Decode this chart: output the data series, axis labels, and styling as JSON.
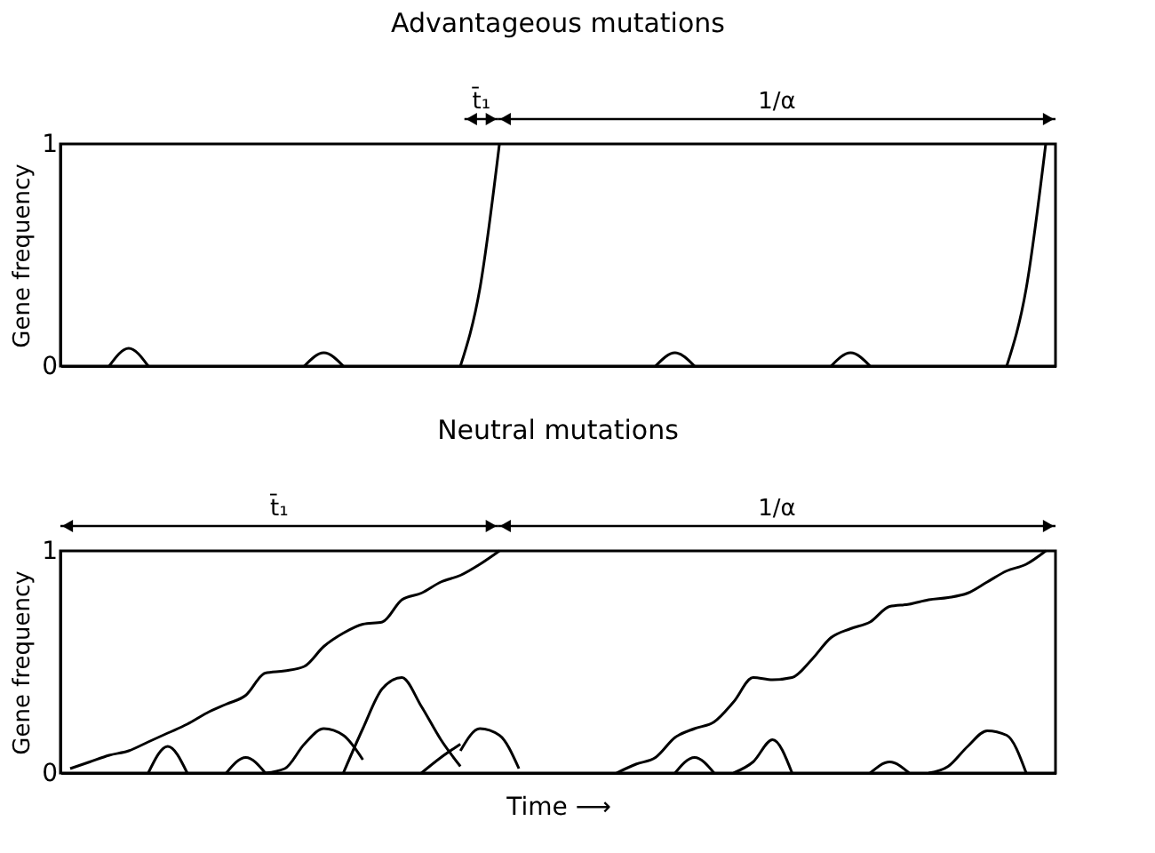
{
  "chart_data": [
    {
      "type": "line",
      "title": "Advantageous mutations",
      "ylabel": "Gene frequency",
      "ylim": [
        0,
        1
      ],
      "yticks": [
        0,
        1
      ],
      "grid": false,
      "legend": false,
      "tick_labels": "y",
      "annotations": [
        "t̄₁",
        "1/α"
      ],
      "categories": [
        null,
        null,
        null,
        null,
        null,
        null,
        null,
        null,
        null,
        null,
        null,
        null,
        null,
        null,
        null,
        null,
        null,
        null,
        null,
        null,
        null,
        null,
        null,
        null,
        null,
        null,
        null,
        null,
        null,
        null,
        null,
        null,
        null,
        null,
        null,
        null,
        null,
        null,
        null,
        null,
        null,
        null,
        null,
        null,
        null,
        null,
        null,
        null,
        null,
        null,
        null
      ],
      "series": [
        {
          "color": "#000000",
          "values": [
            null,
            null,
            0,
            0.08,
            0,
            null,
            null,
            null,
            null,
            null,
            null,
            null,
            null,
            null,
            null,
            null,
            null,
            null,
            null,
            null,
            null,
            null,
            null,
            null,
            null,
            null,
            null,
            null,
            null,
            null,
            null,
            null,
            null,
            null,
            null,
            null,
            null,
            null,
            null,
            null,
            null,
            null,
            null,
            null,
            null,
            null,
            null,
            null,
            null,
            null,
            null
          ]
        },
        {
          "color": "#000000",
          "values": [
            null,
            null,
            null,
            null,
            null,
            null,
            null,
            null,
            null,
            null,
            null,
            null,
            0,
            0.06,
            0,
            null,
            null,
            null,
            null,
            null,
            null,
            null,
            null,
            null,
            null,
            null,
            null,
            null,
            null,
            null,
            null,
            null,
            null,
            null,
            null,
            null,
            null,
            null,
            null,
            null,
            null,
            null,
            null,
            null,
            null,
            null,
            null,
            null,
            null,
            null,
            null
          ]
        },
        {
          "color": "#000000",
          "values": [
            null,
            null,
            null,
            null,
            null,
            null,
            null,
            null,
            null,
            null,
            null,
            null,
            null,
            null,
            null,
            null,
            null,
            null,
            null,
            null,
            0,
            0.35,
            1,
            null,
            null,
            null,
            null,
            null,
            null,
            null,
            null,
            null,
            null,
            null,
            null,
            null,
            null,
            null,
            null,
            null,
            null,
            null,
            null,
            null,
            null,
            null,
            null,
            null,
            null,
            null,
            null
          ]
        },
        {
          "color": "#000000",
          "values": [
            null,
            null,
            null,
            null,
            null,
            null,
            null,
            null,
            null,
            null,
            null,
            null,
            null,
            null,
            null,
            null,
            null,
            null,
            null,
            null,
            null,
            null,
            null,
            null,
            null,
            null,
            null,
            null,
            null,
            null,
            0,
            0.06,
            0,
            null,
            null,
            null,
            null,
            null,
            null,
            null,
            null,
            null,
            null,
            null,
            null,
            null,
            null,
            null,
            null,
            null,
            null
          ]
        },
        {
          "color": "#000000",
          "values": [
            null,
            null,
            null,
            null,
            null,
            null,
            null,
            null,
            null,
            null,
            null,
            null,
            null,
            null,
            null,
            null,
            null,
            null,
            null,
            null,
            null,
            null,
            null,
            null,
            null,
            null,
            null,
            null,
            null,
            null,
            null,
            null,
            null,
            null,
            null,
            null,
            null,
            null,
            null,
            0,
            0.06,
            0,
            null,
            null,
            null,
            null,
            null,
            null,
            null,
            null,
            null
          ]
        },
        {
          "color": "#000000",
          "values": [
            null,
            null,
            null,
            null,
            null,
            null,
            null,
            null,
            null,
            null,
            null,
            null,
            null,
            null,
            null,
            null,
            null,
            null,
            null,
            null,
            null,
            null,
            null,
            null,
            null,
            null,
            null,
            null,
            null,
            null,
            null,
            null,
            null,
            null,
            null,
            null,
            null,
            null,
            null,
            null,
            null,
            null,
            null,
            null,
            null,
            null,
            null,
            null,
            0,
            0.35,
            1
          ]
        }
      ]
    },
    {
      "type": "line",
      "title": "Neutral mutations",
      "ylabel": "Gene frequency",
      "xlabel": "Time ⟶",
      "ylim": [
        0,
        1
      ],
      "yticks": [
        0,
        1
      ],
      "grid": false,
      "legend": false,
      "tick_labels": "y",
      "annotations": [
        "t̄₁",
        "1/α"
      ],
      "categories": [
        null,
        null,
        null,
        null,
        null,
        null,
        null,
        null,
        null,
        null,
        null,
        null,
        null,
        null,
        null,
        null,
        null,
        null,
        null,
        null,
        null,
        null,
        null,
        null,
        null,
        null,
        null,
        null,
        null,
        null,
        null,
        null,
        null,
        null,
        null,
        null,
        null,
        null,
        null,
        null,
        null,
        null,
        null,
        null,
        null,
        null,
        null,
        null,
        null,
        null,
        null
      ],
      "series": [
        {
          "color": "#000000",
          "values": [
            0.02,
            0.05,
            0.08,
            0.1,
            0.14,
            0.18,
            0.22,
            0.27,
            0.31,
            0.35,
            0.45,
            0.46,
            0.48,
            0.57,
            0.63,
            0.67,
            0.68,
            0.78,
            0.81,
            0.86,
            0.89,
            0.94,
            1,
            null,
            null,
            null,
            null,
            null,
            null,
            null,
            null,
            null,
            null,
            null,
            null,
            null,
            null,
            null,
            null,
            null,
            null,
            null,
            null,
            null,
            null,
            null,
            null,
            null,
            null,
            null,
            null
          ]
        },
        {
          "color": "#000000",
          "values": [
            null,
            null,
            null,
            null,
            0,
            0.12,
            0,
            null,
            null,
            null,
            null,
            null,
            null,
            null,
            null,
            null,
            null,
            null,
            null,
            null,
            null,
            null,
            null,
            null,
            null,
            null,
            null,
            null,
            null,
            null,
            null,
            null,
            null,
            null,
            null,
            null,
            null,
            null,
            null,
            null,
            null,
            null,
            null,
            null,
            null,
            null,
            null,
            null,
            null,
            null,
            null
          ]
        },
        {
          "color": "#000000",
          "values": [
            null,
            null,
            null,
            null,
            null,
            null,
            null,
            null,
            0,
            0.07,
            0,
            null,
            null,
            null,
            null,
            null,
            null,
            null,
            null,
            null,
            null,
            null,
            null,
            null,
            null,
            null,
            null,
            null,
            null,
            null,
            null,
            null,
            null,
            null,
            null,
            null,
            null,
            null,
            null,
            null,
            null,
            null,
            null,
            null,
            null,
            null,
            null,
            null,
            null,
            null,
            null
          ]
        },
        {
          "color": "#000000",
          "values": [
            null,
            null,
            null,
            null,
            null,
            null,
            null,
            null,
            null,
            null,
            0,
            0.02,
            0.13,
            0.2,
            0.17,
            0.06,
            null,
            null,
            null,
            null,
            null,
            null,
            null,
            null,
            null,
            null,
            null,
            null,
            null,
            null,
            null,
            null,
            null,
            null,
            null,
            null,
            null,
            null,
            null,
            null,
            null,
            null,
            null,
            null,
            null,
            null,
            null,
            null,
            null,
            null,
            null
          ]
        },
        {
          "color": "#000000",
          "values": [
            null,
            null,
            null,
            null,
            null,
            null,
            null,
            null,
            null,
            null,
            null,
            null,
            null,
            null,
            0,
            0.2,
            0.38,
            0.43,
            0.3,
            0.15,
            0.03,
            null,
            null,
            null,
            null,
            null,
            null,
            null,
            null,
            null,
            null,
            null,
            null,
            null,
            null,
            null,
            null,
            null,
            null,
            null,
            null,
            null,
            null,
            null,
            null,
            null,
            null,
            null,
            null,
            null,
            null
          ]
        },
        {
          "color": "#000000",
          "values": [
            null,
            null,
            null,
            null,
            null,
            null,
            null,
            null,
            null,
            null,
            null,
            null,
            null,
            null,
            null,
            null,
            null,
            null,
            0,
            0.07,
            0.13,
            null,
            null,
            null,
            null,
            null,
            null,
            null,
            null,
            null,
            null,
            null,
            null,
            null,
            null,
            null,
            null,
            null,
            null,
            null,
            null,
            null,
            null,
            null,
            null,
            null,
            null,
            null,
            null,
            null,
            null
          ]
        },
        {
          "color": "#000000",
          "values": [
            null,
            null,
            null,
            null,
            null,
            null,
            null,
            null,
            null,
            null,
            null,
            null,
            null,
            null,
            null,
            null,
            null,
            null,
            null,
            null,
            0.1,
            0.2,
            0.17,
            0.02,
            null,
            null,
            null,
            null,
            null,
            null,
            null,
            null,
            null,
            null,
            null,
            null,
            null,
            null,
            null,
            null,
            null,
            null,
            null,
            null,
            null,
            null,
            null,
            null,
            null,
            null,
            null
          ]
        },
        {
          "color": "#000000",
          "values": [
            null,
            null,
            null,
            null,
            null,
            null,
            null,
            null,
            null,
            null,
            null,
            null,
            null,
            null,
            null,
            null,
            null,
            null,
            null,
            null,
            null,
            null,
            null,
            null,
            null,
            null,
            null,
            null,
            0,
            0.04,
            0.07,
            0.16,
            0.2,
            0.23,
            0.32,
            0.43,
            0.42,
            0.43,
            0.51,
            0.61,
            0.65,
            0.68,
            0.75,
            0.76,
            0.78,
            0.79,
            0.81,
            0.86,
            0.91,
            0.94,
            1
          ]
        },
        {
          "color": "#000000",
          "values": [
            null,
            null,
            null,
            null,
            null,
            null,
            null,
            null,
            null,
            null,
            null,
            null,
            null,
            null,
            null,
            null,
            null,
            null,
            null,
            null,
            null,
            null,
            null,
            null,
            null,
            null,
            null,
            null,
            null,
            null,
            null,
            0,
            0.07,
            0,
            null,
            null,
            null,
            null,
            null,
            null,
            null,
            null,
            null,
            null,
            null,
            null,
            null,
            null,
            null,
            null,
            null
          ]
        },
        {
          "color": "#000000",
          "values": [
            null,
            null,
            null,
            null,
            null,
            null,
            null,
            null,
            null,
            null,
            null,
            null,
            null,
            null,
            null,
            null,
            null,
            null,
            null,
            null,
            null,
            null,
            null,
            null,
            null,
            null,
            null,
            null,
            null,
            null,
            null,
            null,
            null,
            null,
            0,
            0.05,
            0.15,
            0,
            null,
            null,
            null,
            null,
            null,
            null,
            null,
            null,
            null,
            null,
            null,
            null,
            null
          ]
        },
        {
          "color": "#000000",
          "values": [
            null,
            null,
            null,
            null,
            null,
            null,
            null,
            null,
            null,
            null,
            null,
            null,
            null,
            null,
            null,
            null,
            null,
            null,
            null,
            null,
            null,
            null,
            null,
            null,
            null,
            null,
            null,
            null,
            null,
            null,
            null,
            null,
            null,
            null,
            null,
            null,
            null,
            null,
            null,
            null,
            null,
            0,
            0.05,
            0,
            null,
            null,
            null,
            null,
            null,
            null,
            null
          ]
        },
        {
          "color": "#000000",
          "values": [
            null,
            null,
            null,
            null,
            null,
            null,
            null,
            null,
            null,
            null,
            null,
            null,
            null,
            null,
            null,
            null,
            null,
            null,
            null,
            null,
            null,
            null,
            null,
            null,
            null,
            null,
            null,
            null,
            null,
            null,
            null,
            null,
            null,
            null,
            null,
            null,
            null,
            null,
            null,
            null,
            null,
            null,
            null,
            null,
            0,
            0.03,
            0.12,
            0.19,
            0.17,
            0,
            null
          ]
        }
      ]
    }
  ]
}
